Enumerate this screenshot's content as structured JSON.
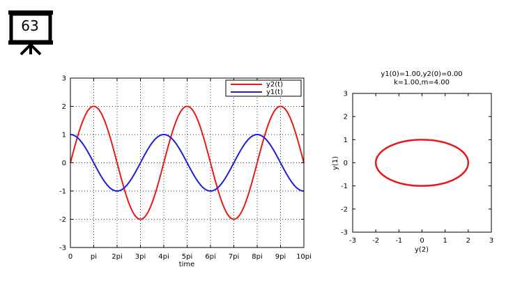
{
  "slide": {
    "number": "63"
  },
  "chart_data": [
    {
      "type": "line",
      "title": "",
      "xlabel": "time",
      "ylabel": "",
      "xlim": [
        0,
        10
      ],
      "ylim": [
        -3,
        3
      ],
      "x_unit": "pi",
      "xticks": [
        0,
        1,
        2,
        3,
        4,
        5,
        6,
        7,
        8,
        9,
        10
      ],
      "xtick_labels": [
        "0",
        "pi",
        "2pi",
        "3pi",
        "4pi",
        "5pi",
        "6pi",
        "7pi",
        "8pi",
        "9pi",
        "10pi"
      ],
      "yticks": [
        -3,
        -2,
        -1,
        0,
        1,
        2,
        3
      ],
      "ytick_labels": [
        "-3",
        "-2",
        "-1",
        "0",
        "1",
        "2",
        "3"
      ],
      "grid": true,
      "legend_position": "top-right",
      "series": [
        {
          "name": "y2(t)",
          "color": "#e81818",
          "formula": "2*sin(t/2)",
          "amplitude": 2,
          "period_in_pi": 4
        },
        {
          "name": "y1(t)",
          "color": "#1c1cde",
          "formula": "cos(t/2)",
          "amplitude": 1,
          "period_in_pi": 4
        }
      ]
    },
    {
      "type": "line",
      "title": "y1(0)=1.00,y2(0)=0.00",
      "subtitle": "k=1.00,m=4.00",
      "xlabel": "y(2)",
      "ylabel": "y(1)",
      "xlim": [
        -3,
        3
      ],
      "ylim": [
        -3,
        3
      ],
      "xticks": [
        -3,
        -2,
        -1,
        0,
        1,
        2,
        3
      ],
      "xtick_labels": [
        "-3",
        "-2",
        "-1",
        "0",
        "1",
        "2",
        "3"
      ],
      "yticks": [
        -3,
        -2,
        -1,
        0,
        1,
        2,
        3
      ],
      "ytick_labels": [
        "-3",
        "-2",
        "-1",
        "0",
        "1",
        "2",
        "3"
      ],
      "grid": false,
      "series": [
        {
          "color": "#e81818",
          "shape": "ellipse",
          "center": [
            0,
            0
          ],
          "x_radius": 2,
          "y_radius": 1
        }
      ]
    }
  ]
}
